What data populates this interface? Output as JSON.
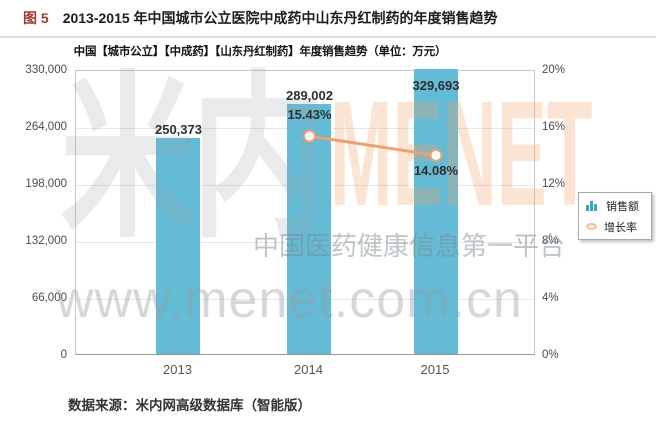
{
  "figure": {
    "label": "图 5",
    "title": "2013-2015 年中国城市公立医院中成药中山东丹红制药的年度销售趋势",
    "source": "数据来源：米内网高级数据库（智能版）"
  },
  "watermark": {
    "brand_cn": "米内",
    "brand_en": "MENET",
    "tagline": "中国医药健康信息第一平台",
    "url": "www.menet.com.cn"
  },
  "legend": {
    "sales_label": "销售额",
    "growth_label": "增长率"
  },
  "colors": {
    "bar": "#64bbd6",
    "line": "#eda171",
    "marker_fill": "#ffffff",
    "figure_label": "#a03b32",
    "gridline": "#e6e6e6"
  },
  "chart_data": {
    "type": "bar",
    "title": "中国【城市公立】【中成药】【山东丹红制药】年度销售趋势（单位：万元）",
    "categories": [
      "2013",
      "2014",
      "2015"
    ],
    "series": [
      {
        "name": "销售额",
        "type": "bar",
        "axis": "left",
        "values": [
          250373,
          289002,
          329693
        ],
        "labels": [
          "250,373",
          "289,002",
          "329,693"
        ],
        "color": "#64bbd6"
      },
      {
        "name": "增长率",
        "type": "line",
        "axis": "right",
        "values": [
          null,
          15.43,
          14.08
        ],
        "labels": [
          null,
          "15.43%",
          "14.08%"
        ],
        "color": "#eda171"
      }
    ],
    "y_left": {
      "min": 0,
      "max": 330000,
      "ticks": [
        0,
        66000,
        132000,
        198000,
        264000,
        330000
      ],
      "tick_labels": [
        "0",
        "66,000",
        "132,000",
        "198,000",
        "264,000",
        "330,000"
      ]
    },
    "y_right": {
      "min": 0,
      "max": 20,
      "ticks": [
        0,
        4,
        8,
        12,
        16,
        20
      ],
      "tick_labels": [
        "0%",
        "4%",
        "8%",
        "12%",
        "16%",
        "20%"
      ]
    },
    "grid": true,
    "legend_position": "right-middle"
  }
}
